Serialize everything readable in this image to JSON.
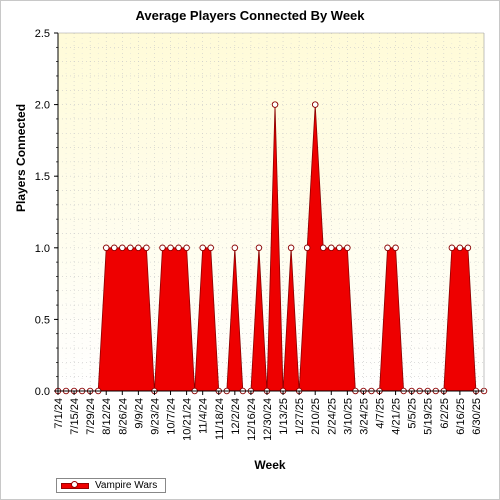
{
  "chart_data": {
    "type": "area",
    "title": "Average Players Connected By Week",
    "xlabel": "Week",
    "ylabel": "Players Connected",
    "ylim": [
      0,
      2.5
    ],
    "yticks": [
      "0.0",
      "0.5",
      "1.0",
      "1.5",
      "2.0",
      "2.5"
    ],
    "grid": true,
    "legend_position": "bottom-left",
    "x_tick_labels": [
      "7/1/24",
      "7/15/24",
      "7/29/24",
      "8/12/24",
      "8/26/24",
      "9/9/24",
      "9/23/24",
      "10/7/24",
      "10/21/24",
      "11/4/24",
      "11/18/24",
      "12/2/24",
      "12/16/24",
      "12/30/24",
      "1/13/25",
      "1/27/25",
      "2/10/25",
      "2/24/25",
      "3/10/25",
      "3/24/25",
      "4/7/25",
      "4/21/25",
      "5/5/25",
      "5/19/25",
      "6/2/25",
      "6/16/25",
      "6/30/25"
    ],
    "x": [
      "7/1/24",
      "7/8/24",
      "7/15/24",
      "7/22/24",
      "7/29/24",
      "8/5/24",
      "8/12/24",
      "8/19/24",
      "8/26/24",
      "9/2/24",
      "9/9/24",
      "9/16/24",
      "9/23/24",
      "9/30/24",
      "10/7/24",
      "10/14/24",
      "10/21/24",
      "10/28/24",
      "11/4/24",
      "11/11/24",
      "11/18/24",
      "11/25/24",
      "12/2/24",
      "12/9/24",
      "12/16/24",
      "12/23/24",
      "12/30/24",
      "1/6/25",
      "1/13/25",
      "1/20/25",
      "1/27/25",
      "2/3/25",
      "2/10/25",
      "2/17/25",
      "2/24/25",
      "3/3/25",
      "3/10/25",
      "3/17/25",
      "3/24/25",
      "3/31/25",
      "4/7/25",
      "4/14/25",
      "4/21/25",
      "4/28/25",
      "5/5/25",
      "5/12/25",
      "5/19/25",
      "5/26/25",
      "6/2/25",
      "6/9/25",
      "6/16/25",
      "6/23/25",
      "6/30/25",
      "7/7/25"
    ],
    "series": [
      {
        "name": "Vampire Wars",
        "color": "#ee0000",
        "values": [
          0,
          0,
          0,
          0,
          0,
          0,
          1,
          1,
          1,
          1,
          1,
          1,
          0,
          1,
          1,
          1,
          1,
          0,
          1,
          1,
          0,
          0,
          1,
          0,
          0,
          1,
          0,
          2,
          0,
          1,
          0,
          1,
          2,
          1,
          1,
          1,
          1,
          0,
          0,
          0,
          0,
          1,
          1,
          0,
          0,
          0,
          0,
          0,
          0,
          1,
          1,
          1,
          0,
          0
        ]
      }
    ]
  },
  "legend": {
    "label": "Vampire Wars"
  }
}
